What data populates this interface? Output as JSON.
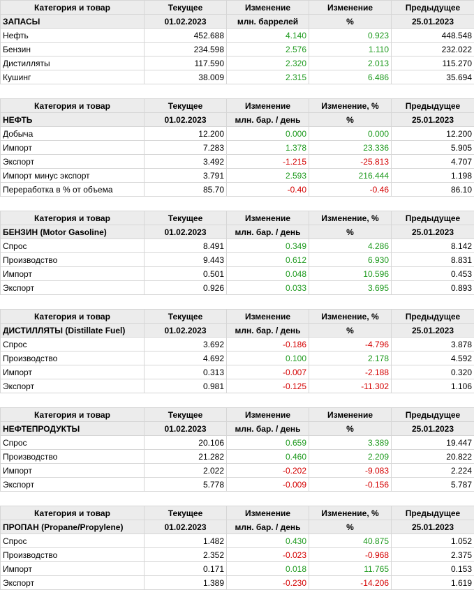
{
  "colors": {
    "positive": "#1e9a1e",
    "negative": "#d40000",
    "header_bg": "#ececec"
  },
  "tables": [
    {
      "header1": [
        "Категория и товар",
        "Текущее",
        "Изменение",
        "Изменение",
        "Предыдущее"
      ],
      "header2": [
        "ЗАПАСЫ",
        "01.02.2023",
        "млн. баррелей",
        "%",
        "25.01.2023"
      ],
      "rows": [
        [
          "Нефть",
          "452.688",
          "4.140",
          "0.923",
          "448.548"
        ],
        [
          "Бензин",
          "234.598",
          "2.576",
          "1.110",
          "232.022"
        ],
        [
          "Дистилляты",
          "117.590",
          "2.320",
          "2.013",
          "115.270"
        ],
        [
          "Кушинг",
          "38.009",
          "2.315",
          "6.486",
          "35.694"
        ]
      ]
    },
    {
      "header1": [
        "Категория и товар",
        "Текущее",
        "Изменение",
        "Изменение, %",
        "Предыдущее"
      ],
      "header2": [
        "НЕФТЬ",
        "01.02.2023",
        "млн. бар. / день",
        "%",
        "25.01.2023"
      ],
      "rows": [
        [
          "Добыча",
          "12.200",
          "0.000",
          "0.000",
          "12.200"
        ],
        [
          "Импорт",
          "7.283",
          "1.378",
          "23.336",
          "5.905"
        ],
        [
          "Экспорт",
          "3.492",
          "-1.215",
          "-25.813",
          "4.707"
        ],
        [
          "Импорт минус экспорт",
          "3.791",
          "2.593",
          "216.444",
          "1.198"
        ],
        [
          "Переработка в % от объема",
          "85.70",
          "-0.40",
          "-0.46",
          "86.10"
        ]
      ]
    },
    {
      "header1": [
        "Категория и товар",
        "Текущее",
        "Изменение",
        "Изменение, %",
        "Предыдущее"
      ],
      "header2": [
        "БЕНЗИН (Motor Gasoline)",
        "01.02.2023",
        "млн. бар. / день",
        "%",
        "25.01.2023"
      ],
      "rows": [
        [
          "Спрос",
          "8.491",
          "0.349",
          "4.286",
          "8.142"
        ],
        [
          "Производство",
          "9.443",
          "0.612",
          "6.930",
          "8.831"
        ],
        [
          "Импорт",
          "0.501",
          "0.048",
          "10.596",
          "0.453"
        ],
        [
          "Экспорт",
          "0.926",
          "0.033",
          "3.695",
          "0.893"
        ]
      ]
    },
    {
      "header1": [
        "Категория и товар",
        "Текущее",
        "Изменение",
        "Изменение, %",
        "Предыдущее"
      ],
      "header2": [
        "ДИСТИЛЛЯТЫ (Distillate Fuel)",
        "01.02.2023",
        "млн. бар. / день",
        "%",
        "25.01.2023"
      ],
      "rows": [
        [
          "Спрос",
          "3.692",
          "-0.186",
          "-4.796",
          "3.878"
        ],
        [
          "Производство",
          "4.692",
          "0.100",
          "2.178",
          "4.592"
        ],
        [
          "Импорт",
          "0.313",
          "-0.007",
          "-2.188",
          "0.320"
        ],
        [
          "Экспорт",
          "0.981",
          "-0.125",
          "-11.302",
          "1.106"
        ]
      ]
    },
    {
      "header1": [
        "Категория и товар",
        "Текущее",
        "Изменение",
        "Изменение",
        "Предыдущее"
      ],
      "header2": [
        "НЕФТЕПРОДУКТЫ",
        "01.02.2023",
        "млн. бар. / день",
        "%",
        "25.01.2023"
      ],
      "rows": [
        [
          "Спрос",
          "20.106",
          "0.659",
          "3.389",
          "19.447"
        ],
        [
          "Производство",
          "21.282",
          "0.460",
          "2.209",
          "20.822"
        ],
        [
          "Импорт",
          "2.022",
          "-0.202",
          "-9.083",
          "2.224"
        ],
        [
          "Экспорт",
          "5.778",
          "-0.009",
          "-0.156",
          "5.787"
        ]
      ]
    },
    {
      "header1": [
        "Категория и товар",
        "Текущее",
        "Изменение",
        "Изменение, %",
        "Предыдущее"
      ],
      "header2": [
        "ПРОПАН (Propane/Propylene)",
        "01.02.2023",
        "млн. бар. / день",
        "%",
        "25.01.2023"
      ],
      "rows": [
        [
          "Спрос",
          "1.482",
          "0.430",
          "40.875",
          "1.052"
        ],
        [
          "Производство",
          "2.352",
          "-0.023",
          "-0.968",
          "2.375"
        ],
        [
          "Импорт",
          "0.171",
          "0.018",
          "11.765",
          "0.153"
        ],
        [
          "Экспорт",
          "1.389",
          "-0.230",
          "-14.206",
          "1.619"
        ]
      ]
    }
  ]
}
